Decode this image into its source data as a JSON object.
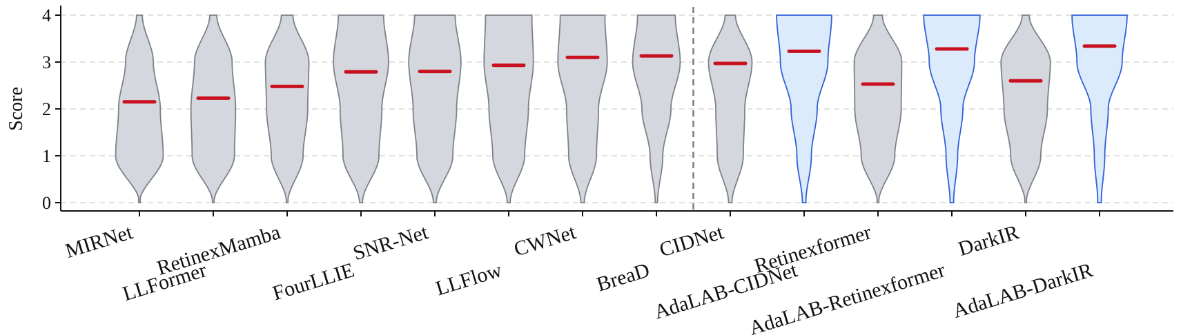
{
  "chart_data": {
    "type": "violin",
    "ylabel": "Score",
    "ylim": [
      0,
      4
    ],
    "yticks": [
      "0",
      "1",
      "2",
      "3",
      "4"
    ],
    "grid": "horizontal dashed",
    "separator_after_index": 7,
    "categories": [
      "MIRNet",
      "LLFormer",
      "RetinexMamba",
      "FourLLIE",
      "SNR-Net",
      "LLFlow",
      "CWNet",
      "BreaD",
      "CIDNet",
      "AdaLAB-CIDNet",
      "Retinexformer",
      "AdaLAB-Retinexformer",
      "DarkIR",
      "AdaLAB-DarkIR"
    ],
    "means": [
      2.15,
      2.23,
      2.48,
      2.79,
      2.8,
      2.93,
      3.1,
      3.13,
      2.97,
      3.23,
      2.53,
      3.28,
      2.6,
      3.34
    ],
    "highlighted": [
      false,
      false,
      false,
      false,
      false,
      false,
      false,
      false,
      false,
      true,
      false,
      true,
      false,
      true
    ],
    "score_levels": [
      0,
      1,
      2,
      3,
      4
    ],
    "width_profiles": [
      [
        0.0,
        0.82,
        0.72,
        0.48,
        0.1
      ],
      [
        0.02,
        0.73,
        0.77,
        0.65,
        0.12
      ],
      [
        0.02,
        0.55,
        0.71,
        0.75,
        0.2
      ],
      [
        0.05,
        0.62,
        0.72,
        0.95,
        0.78
      ],
      [
        0.05,
        0.62,
        0.75,
        0.9,
        0.7
      ],
      [
        0.05,
        0.55,
        0.68,
        0.85,
        0.8
      ],
      [
        0.06,
        0.48,
        0.55,
        0.85,
        0.77
      ],
      [
        0.04,
        0.22,
        0.5,
        0.82,
        0.65
      ],
      [
        0.06,
        0.45,
        0.5,
        0.75,
        0.18
      ],
      [
        0.06,
        0.25,
        0.45,
        0.82,
        0.95
      ],
      [
        0.02,
        0.58,
        0.8,
        0.82,
        0.15
      ],
      [
        0.06,
        0.2,
        0.38,
        0.78,
        0.97
      ],
      [
        0.02,
        0.52,
        0.75,
        0.85,
        0.12
      ],
      [
        0.06,
        0.18,
        0.3,
        0.78,
        0.95
      ]
    ]
  },
  "colors": {
    "default_fill": "#d4d7dd",
    "default_stroke": "#7c828a",
    "highlight_fill": "#dcebfc",
    "highlight_stroke": "#2f60d6",
    "mean_line": "#c8101e",
    "grid": "#d8d8d8",
    "separator": "#7d7d7d",
    "axis": "#111111"
  }
}
